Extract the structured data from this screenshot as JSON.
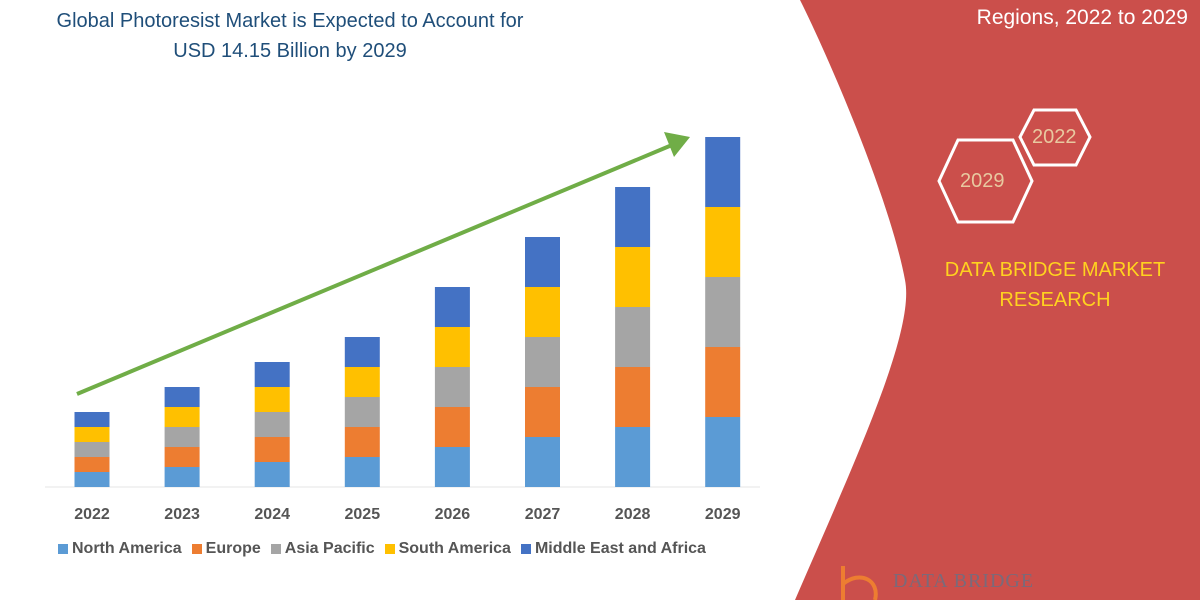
{
  "chart_data": {
    "type": "bar",
    "stacked": true,
    "title": "Global Photoresist Market is Expected to Account for USD 14.15 Billion by 2029",
    "categories": [
      "2022",
      "2023",
      "2024",
      "2025",
      "2026",
      "2027",
      "2028",
      "2029"
    ],
    "series": [
      {
        "name": "North America",
        "color": "#5b9bd5",
        "values": [
          15,
          20,
          25,
          30,
          40,
          50,
          60,
          70
        ]
      },
      {
        "name": "Europe",
        "color": "#ed7d31",
        "values": [
          15,
          20,
          25,
          30,
          40,
          50,
          60,
          70
        ]
      },
      {
        "name": "Asia Pacific",
        "color": "#a5a5a5",
        "values": [
          15,
          20,
          25,
          30,
          40,
          50,
          60,
          70
        ]
      },
      {
        "name": "South America",
        "color": "#ffc000",
        "values": [
          15,
          20,
          25,
          30,
          40,
          50,
          60,
          70
        ]
      },
      {
        "name": "Middle East and Africa",
        "color": "#4472c4",
        "values": [
          15,
          20,
          25,
          30,
          40,
          50,
          60,
          70
        ]
      }
    ],
    "yaxis_shown": false,
    "grid": false,
    "legend": "bottom",
    "trend_arrow_color": "#70ad47"
  },
  "panel": {
    "subtitle": "Regions, 2022 to 2029",
    "hex_1": "2022",
    "hex_2": "2029",
    "brand": "DATA BRIDGE MARKET RESEARCH",
    "logo": "DATA BRIDGE",
    "color": "#cb4f4b"
  }
}
